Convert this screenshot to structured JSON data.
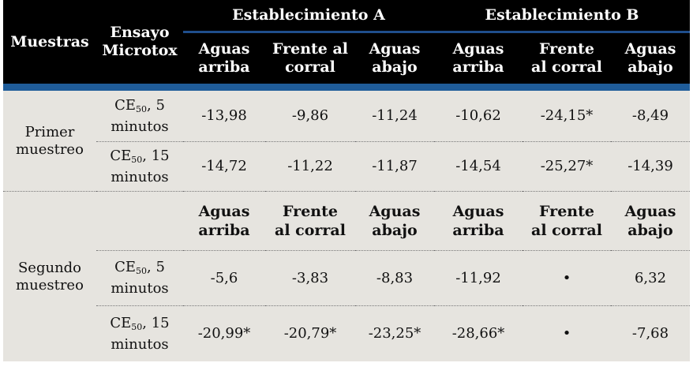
{
  "header": {
    "muestras": "Muestras",
    "ensayo_line1": "Ensayo",
    "ensayo_line2": "Microtox",
    "est_a": "Establecimiento A",
    "est_b": "Establecimiento B",
    "cols": [
      {
        "l1": "Aguas",
        "l2": "arriba"
      },
      {
        "l1": "Frente al",
        "l2": "corral"
      },
      {
        "l1": "Aguas",
        "l2": "abajo"
      },
      {
        "l1": "Aguas",
        "l2": "arriba"
      },
      {
        "l1": "Frente",
        "l2": "al corral"
      },
      {
        "l1": "Aguas",
        "l2": "abajo"
      }
    ]
  },
  "sample1": {
    "label_l1": "Primer",
    "label_l2": "muestreo",
    "rows": [
      {
        "ce": "CE",
        "sub": "50",
        "after": ", 5",
        "line2": "minutos",
        "values": [
          "-13,98",
          "-9,86",
          "-11,24",
          "-10,62",
          "-24,15*",
          "-8,49"
        ]
      },
      {
        "ce": "CE",
        "sub": "50",
        "after": ", 15",
        "line2": "minutos",
        "values": [
          "-14,72",
          "-11,22",
          "-11,87",
          "-14,54",
          "-25,27*",
          "-14,39"
        ]
      }
    ]
  },
  "sample2": {
    "label_l1": "Segundo",
    "label_l2": "muestreo",
    "cols": [
      {
        "l1": "Aguas",
        "l2": "arriba"
      },
      {
        "l1": "Frente",
        "l2": "al corral"
      },
      {
        "l1": "Aguas",
        "l2": "abajo"
      },
      {
        "l1": "Aguas",
        "l2": "arriba"
      },
      {
        "l1": "Frente",
        "l2": "al corral"
      },
      {
        "l1": "Aguas",
        "l2": "abajo"
      }
    ],
    "rows": [
      {
        "ce": "CE",
        "sub": "50",
        "after": ", 5",
        "line2": "minutos",
        "values": [
          "-5,6",
          "-3,83",
          "-8,83",
          "-11,92",
          "•",
          "6,32"
        ]
      },
      {
        "ce": "CE",
        "sub": "50",
        "after": ", 15",
        "line2": "minutos",
        "values": [
          "-20,99*",
          "-20,79*",
          "-23,25*",
          "-28,66*",
          "•",
          "-7,68"
        ]
      }
    ]
  }
}
